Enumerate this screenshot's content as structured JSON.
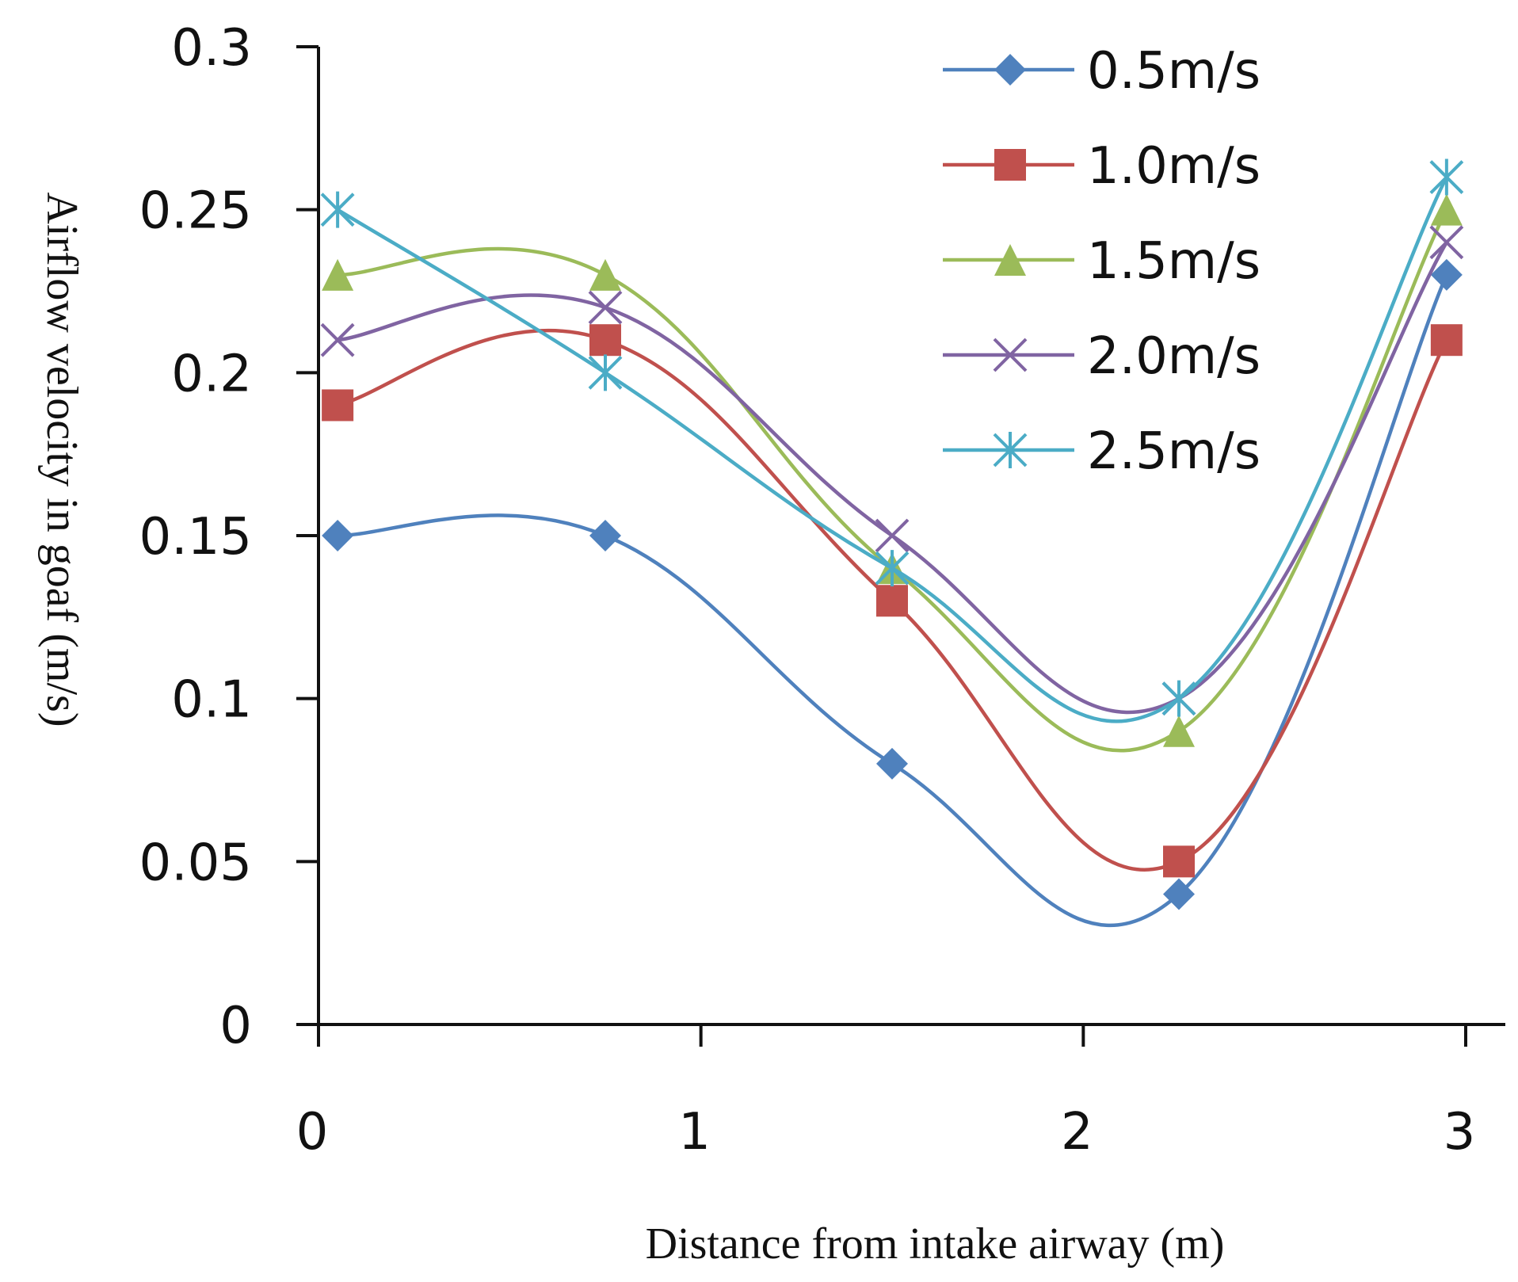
{
  "chart_data": {
    "type": "line",
    "title": "",
    "xlabel": "Distance from intake airway (m)",
    "ylabel": "Airflow velocity in goaf (m/s)",
    "xlim": [
      0,
      3
    ],
    "ylim": [
      0,
      0.3
    ],
    "x_ticks": [
      "0",
      "1",
      "2",
      "3"
    ],
    "y_ticks": [
      "0",
      "0.05",
      "0.1",
      "0.15",
      "0.2",
      "0.25",
      "0.3"
    ],
    "grid": false,
    "legend_position": "top-right",
    "x": [
      0.05,
      0.75,
      1.5,
      2.25,
      2.95
    ],
    "series": [
      {
        "name": "0.5m/s",
        "color": "#4f81bd",
        "marker": "diamond",
        "values": [
          0.15,
          0.15,
          0.08,
          0.04,
          0.23
        ]
      },
      {
        "name": "1.0m/s",
        "color": "#c0504d",
        "marker": "square",
        "values": [
          0.19,
          0.21,
          0.13,
          0.05,
          0.21
        ]
      },
      {
        "name": "1.5m/s",
        "color": "#9bbb59",
        "marker": "triangle",
        "values": [
          0.23,
          0.23,
          0.14,
          0.09,
          0.25
        ]
      },
      {
        "name": "2.0m/s",
        "color": "#8064a2",
        "marker": "x",
        "values": [
          0.21,
          0.22,
          0.15,
          0.1,
          0.24
        ]
      },
      {
        "name": "2.5m/s",
        "color": "#4bacc6",
        "marker": "star",
        "values": [
          0.25,
          0.2,
          0.14,
          0.1,
          0.26
        ]
      }
    ]
  }
}
